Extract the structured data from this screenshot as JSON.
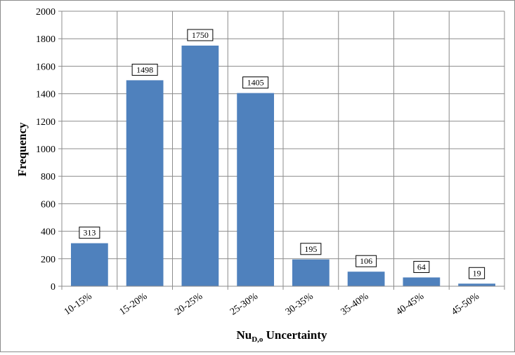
{
  "chart_data": {
    "type": "bar",
    "title": "",
    "xlabel": "Nu",
    "xlabel_sub": "D,o",
    "xlabel_suffix": " Uncertainty",
    "ylabel": "Frequency",
    "categories": [
      "10-15%",
      "15-20%",
      "20-25%",
      "25-30%",
      "30-35%",
      "35-40%",
      "40-45%",
      "45-50%"
    ],
    "values": [
      313,
      1498,
      1750,
      1405,
      195,
      106,
      64,
      19
    ],
    "data_labels": [
      "313",
      "1498",
      "1750",
      "1405",
      "195",
      "106",
      "64",
      "19"
    ],
    "ylim": [
      0,
      2000
    ],
    "yticks": [
      0,
      200,
      400,
      600,
      800,
      1000,
      1200,
      1400,
      1600,
      1800,
      2000
    ],
    "ytick_labels": [
      "0",
      "200",
      "400",
      "600",
      "800",
      "1000",
      "1200",
      "1400",
      "1600",
      "1800",
      "2000"
    ],
    "grid": true,
    "legend": "none",
    "colors": {
      "bar": "#4f81bd",
      "grid": "#8c8c8c",
      "axis": "#8c8c8c"
    }
  }
}
